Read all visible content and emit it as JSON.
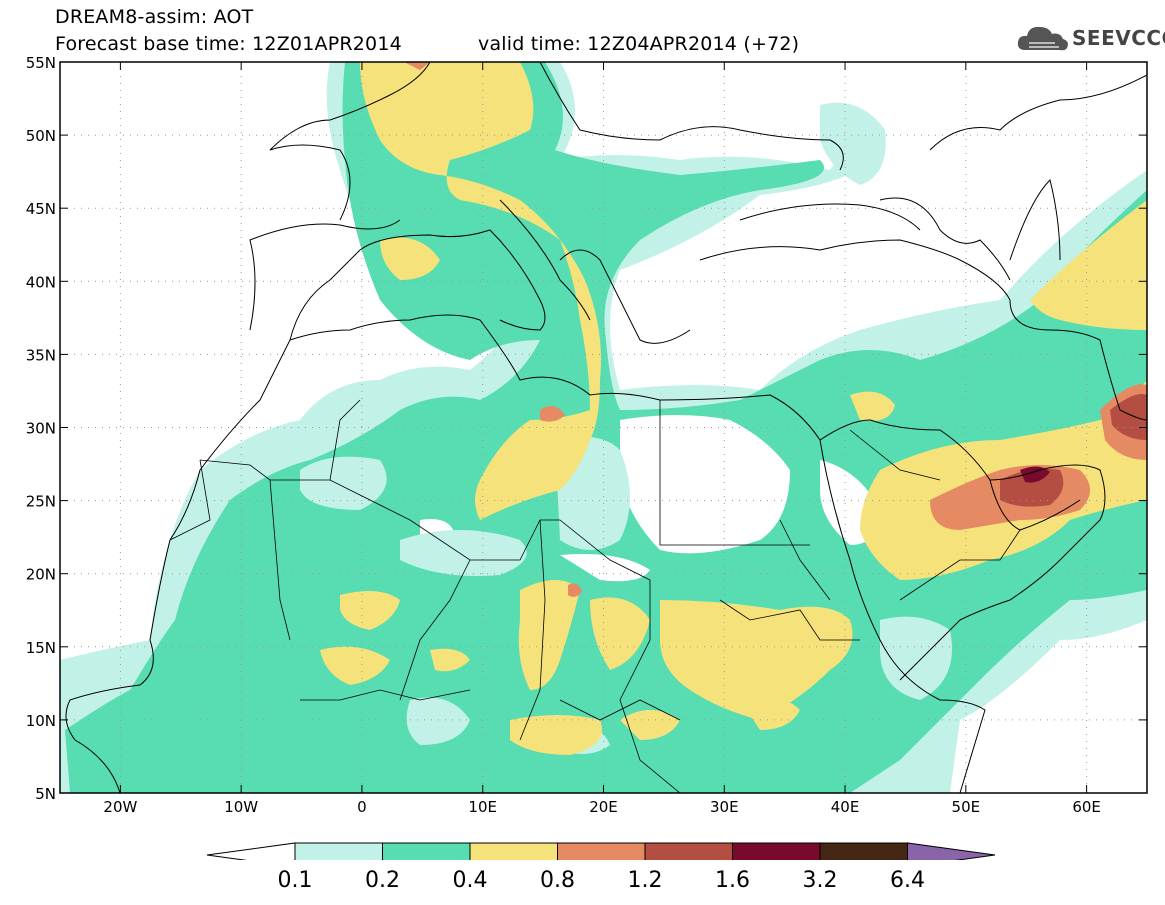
{
  "header": {
    "line1": "DREAM8-assim: AOT",
    "line2_left": "Forecast base time: 12Z01APR2014",
    "line2_right": "valid time: 12Z04APR2014 (+72)"
  },
  "logo": {
    "text": "SEEVCCC",
    "icon": "cloud-icon"
  },
  "map": {
    "lat_labels": [
      "55N",
      "50N",
      "45N",
      "40N",
      "35N",
      "30N",
      "25N",
      "20N",
      "15N",
      "10N",
      "5N"
    ],
    "lon_labels": [
      "20W",
      "10W",
      "0",
      "10E",
      "20E",
      "30E",
      "40E",
      "50E",
      "60E"
    ],
    "lat_range": [
      5,
      55
    ],
    "lon_range": [
      -25,
      65
    ],
    "colors": {
      "c01": "#c2f1e8",
      "c02": "#58dcb2",
      "c04": "#f5e27a",
      "c08": "#e58a62",
      "c12": "#b44e42",
      "c16": "#7a0a2c",
      "c32": "#432613",
      "c64": "#8a64a8"
    }
  },
  "colorbar": {
    "labels": [
      "0.1",
      "0.2",
      "0.4",
      "0.8",
      "1.2",
      "1.6",
      "3.2",
      "6.4"
    ],
    "colors": [
      "#c2f1e8",
      "#58dcb2",
      "#f5e27a",
      "#e58a62",
      "#b44e42",
      "#7a0a2c",
      "#432613"
    ],
    "under_color": "#ffffff",
    "over_color": "#8a64a8"
  }
}
